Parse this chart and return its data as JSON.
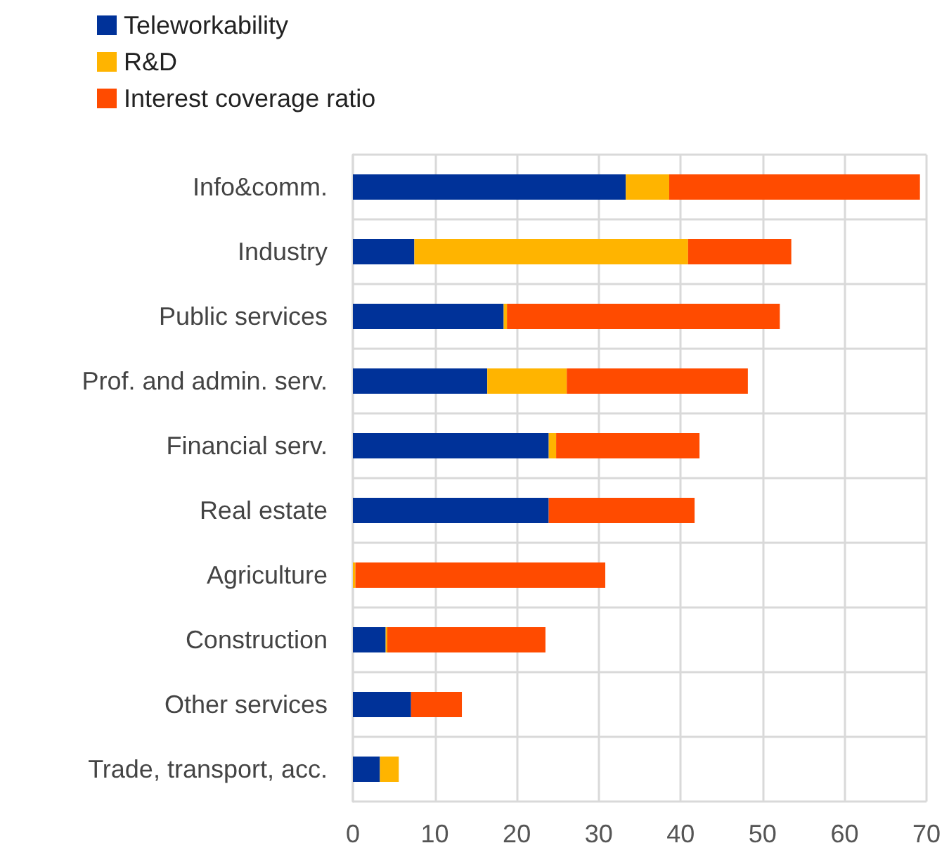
{
  "chart_data": {
    "type": "bar",
    "orientation": "horizontal",
    "stacked": true,
    "categories": [
      "Info&comm.",
      "Industry",
      "Public services",
      "Prof. and admin. serv.",
      "Financial serv.",
      "Real estate",
      "Agriculture",
      "Construction",
      "Other services",
      "Trade, transport, acc."
    ],
    "series": [
      {
        "name": "Teleworkability",
        "color": "#003299",
        "values": [
          33.3,
          7.5,
          18.4,
          16.4,
          23.9,
          23.9,
          0,
          4.0,
          7.1,
          3.3
        ]
      },
      {
        "name": "R&D",
        "color": "#ffb400",
        "values": [
          5.3,
          33.4,
          0.4,
          9.7,
          0.9,
          0,
          0.3,
          0.2,
          0,
          2.3
        ]
      },
      {
        "name": "Interest coverage ratio",
        "color": "#ff4b00",
        "values": [
          30.6,
          12.6,
          33.3,
          22.1,
          17.5,
          17.8,
          30.5,
          19.3,
          6.2,
          0
        ]
      }
    ],
    "xlim": [
      0,
      70
    ],
    "xticks": [
      0,
      10,
      20,
      30,
      40,
      50,
      60,
      70
    ],
    "grid": true,
    "legend": "top left"
  }
}
